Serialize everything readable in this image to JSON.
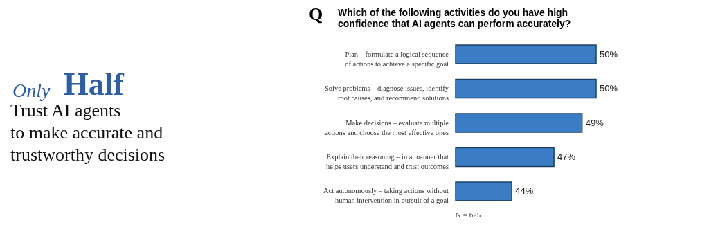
{
  "chart_data": {
    "type": "bar",
    "orientation": "horizontal",
    "title": "Which of the following activities do you have high confidence that AI agents can perform accurately?",
    "categories": [
      "Plan – formulate a logical sequence\nof actions to achieve a specific goal",
      "Solve problems – diagnose issues, identify\nroot causes, and recommend solutions",
      "Make decisions – evaluate multiple\nactions and choose the most effective ones",
      "Explain their reasoning – in a manner that\nhelps users understand and trust outcomes",
      "Act autonomously – taking actions without\nhuman intervention in pursuit of a goal"
    ],
    "values": [
      50,
      50,
      49,
      47,
      44
    ],
    "value_labels": [
      "50%",
      "50%",
      "49%",
      "47%",
      "44%"
    ],
    "color": "#3a7dc6",
    "xlim": [
      40,
      50
    ],
    "annotations": [
      "Q",
      "Only",
      "Half",
      "Trust AI agents\nto make accurate and\ntrustworthy decisions",
      "N = 625"
    ]
  }
}
